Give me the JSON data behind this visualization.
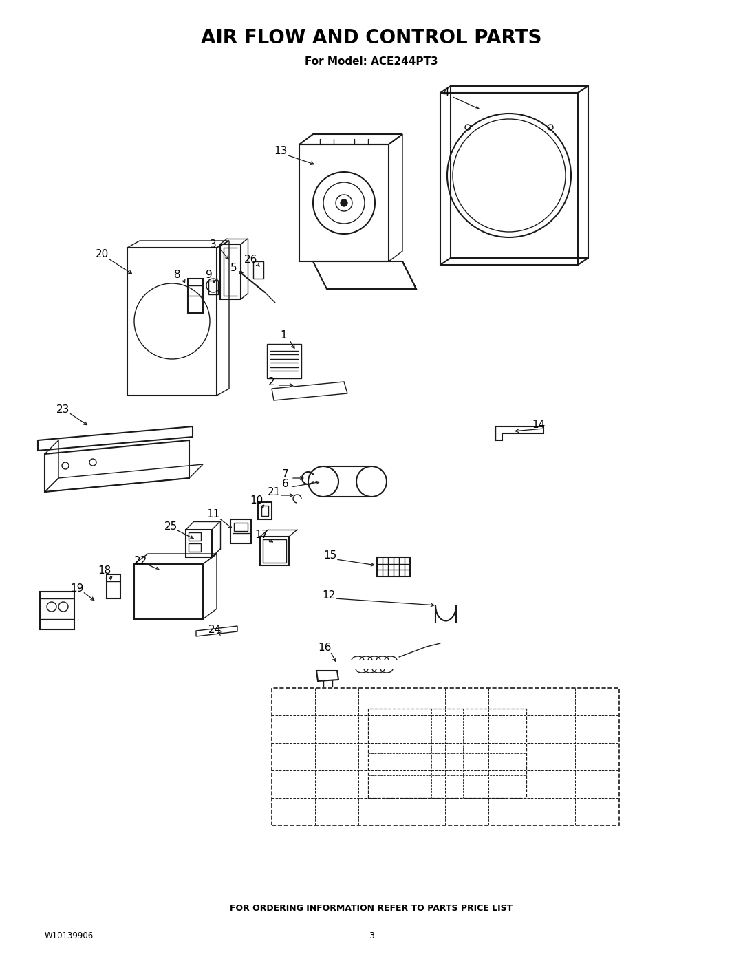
{
  "title": "AIR FLOW AND CONTROL PARTS",
  "subtitle": "For Model: ACE244PT3",
  "footer_text": "FOR ORDERING INFORMATION REFER TO PARTS PRICE LIST",
  "doc_number": "W10139906",
  "page_number": "3",
  "bg_color": "#ffffff",
  "text_color": "#000000",
  "title_fontsize": 20,
  "subtitle_fontsize": 11,
  "footer_fontsize": 9,
  "fig_width": 10.8,
  "fig_height": 13.97
}
